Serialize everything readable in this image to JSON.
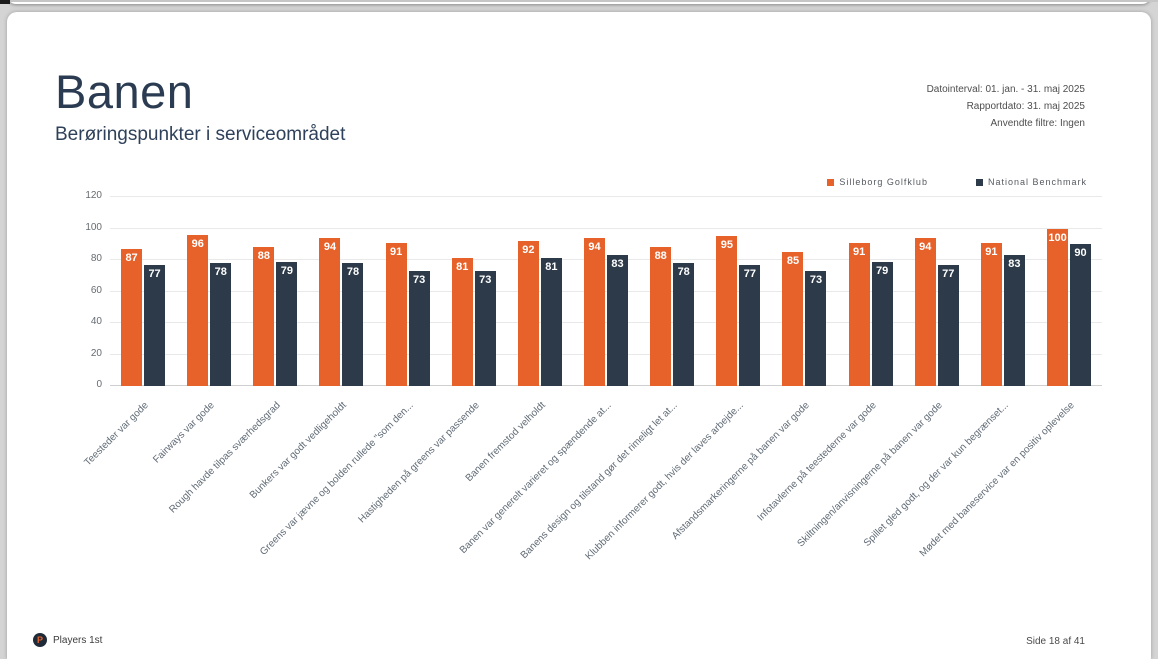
{
  "page": {
    "title": "Banen",
    "subtitle": "Berøringspunkter i serviceområdet",
    "meta": {
      "line1": "Datointerval: 01. jan. - 31. maj 2025",
      "line2": "Rapportdato: 31. maj 2025",
      "line3": "Anvendte filtre: Ingen"
    },
    "footer": {
      "logo_letter": "P",
      "brand": "Players 1st",
      "page_number": "Side 18 af 41"
    }
  },
  "chart_data": {
    "type": "bar",
    "title": "",
    "categories": [
      "Teesteder var gode",
      "Fairways var gode",
      "Rough havde tilpas sværhedsgrad",
      "Bunkers var godt vedligeholdt",
      "Greens var jævne og bolden rullede \"som den...",
      "Hastigheden på greens var passende",
      "Banen fremstod velholdt",
      "Banen var generelt varieret og spændende at...",
      "Banens design og tilstand gør det rimeligt let at...",
      "Klubben informerer godt, hvis der laves arbejde...",
      "Afstandsmarkeringerne på banen var gode",
      "Infotavlerne på teestederne var gode",
      "Skiltningen/anvisningerne på banen var gode",
      "Spillet gled godt, og der var kun begrænset...",
      "Mødet med baneservice var en positiv oplevelse"
    ],
    "series": [
      {
        "name": "Silleborg Golfklub",
        "color": "#e7622a",
        "values": [
          87,
          96,
          88,
          94,
          91,
          81,
          92,
          94,
          88,
          95,
          85,
          91,
          94,
          91,
          100
        ]
      },
      {
        "name": "National Benchmark",
        "color": "#2c3a49",
        "values": [
          77,
          78,
          79,
          78,
          73,
          73,
          81,
          83,
          78,
          77,
          73,
          79,
          77,
          83,
          90
        ]
      }
    ],
    "ylim": [
      0,
      120
    ],
    "yticks": [
      0,
      20,
      40,
      60,
      80,
      100,
      120
    ],
    "grid": true,
    "legend_position": "top-right"
  }
}
